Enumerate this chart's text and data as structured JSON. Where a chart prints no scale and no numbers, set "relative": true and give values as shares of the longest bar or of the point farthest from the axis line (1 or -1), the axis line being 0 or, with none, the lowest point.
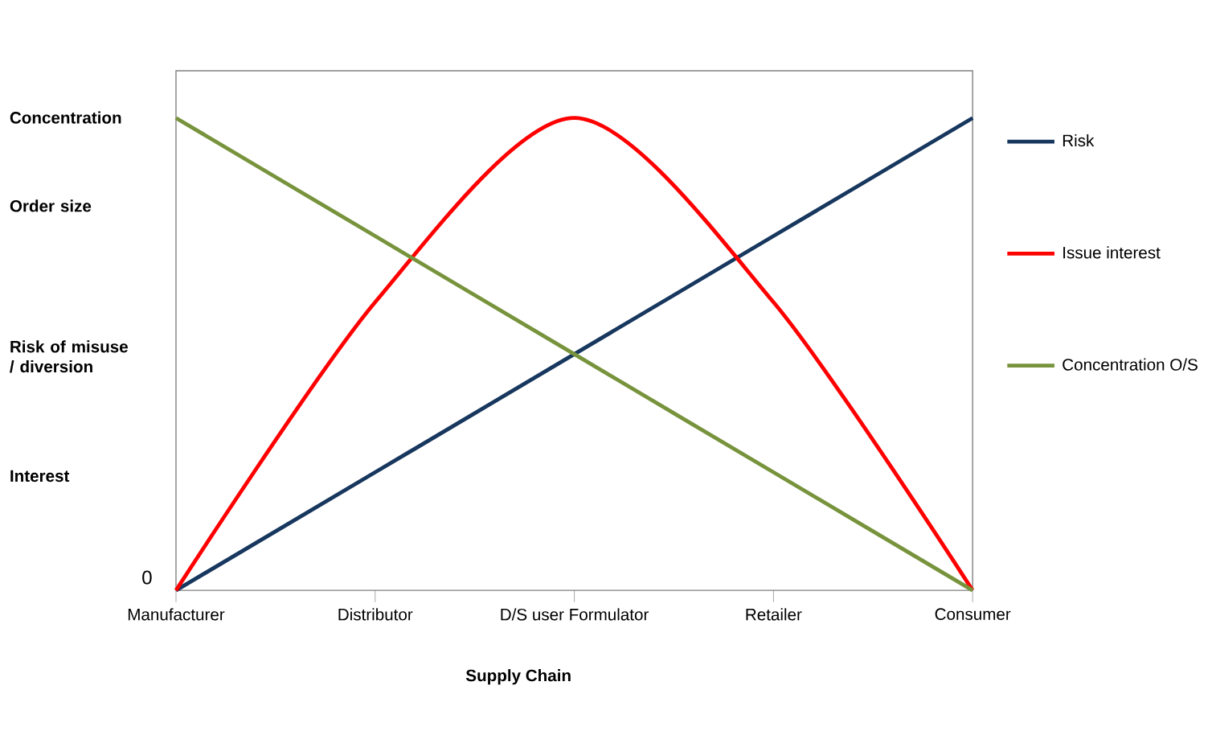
{
  "chart_data": {
    "type": "line",
    "relative": true,
    "xlabel": "Supply Chain",
    "categories": [
      "Manufacturer",
      "Distributor",
      "D/S user Formulator",
      "Retailer",
      "Consumer"
    ],
    "series": [
      {
        "name": "Risk",
        "color": "#17375e",
        "values": [
          0,
          0.25,
          0.5,
          0.75,
          1
        ]
      },
      {
        "name": "Issue interest",
        "color": "#ff0000",
        "values": [
          0,
          0.61,
          1,
          0.61,
          0
        ]
      },
      {
        "name": "Concentration O/S",
        "color": "#77933c",
        "values": [
          1,
          0.75,
          0.5,
          0.25,
          0
        ]
      }
    ],
    "annotations": [
      "Concentration",
      "Order size",
      "Risk of misuse / diversion",
      "Interest",
      "0"
    ],
    "legend": "right",
    "marker": "none",
    "line_style": "solid",
    "grid": false
  }
}
